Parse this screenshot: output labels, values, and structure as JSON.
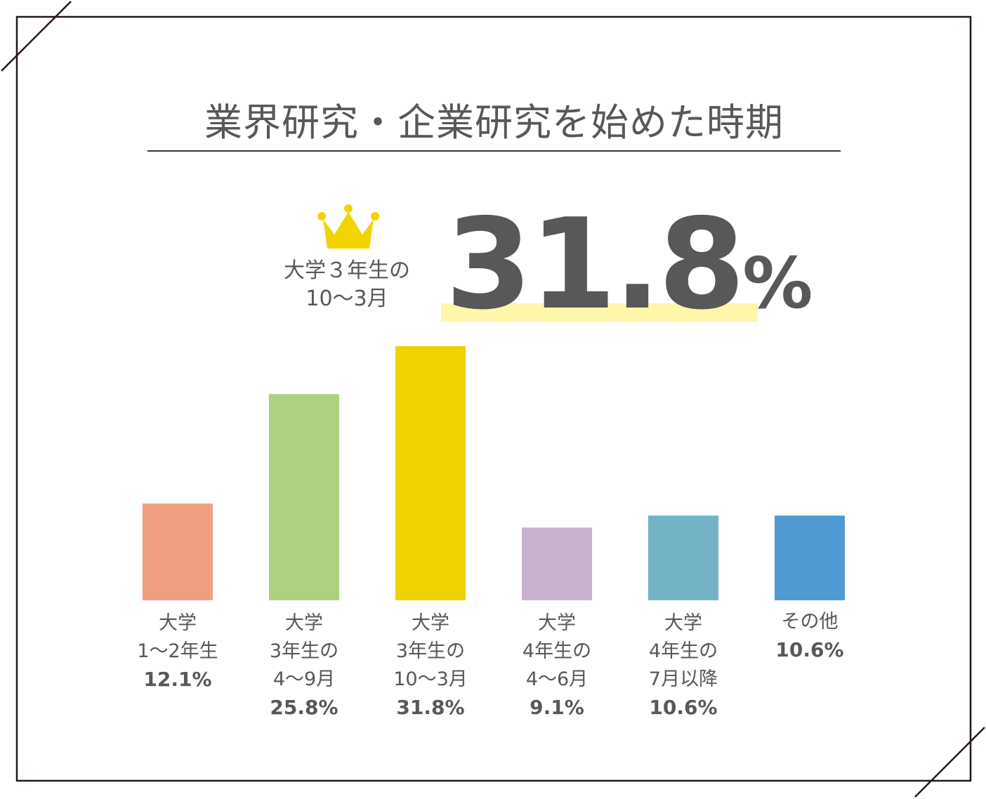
{
  "title": "業界研究・企業研究を始めた時期",
  "highlight": {
    "label_line1": "大学３年生の",
    "label_line2": "10～3月",
    "value_number": "31.8",
    "value_unit": "%",
    "icon": "crown-icon",
    "icon_color": "#f3d300",
    "marker_color": "#fff7a8"
  },
  "chart_data": {
    "type": "bar",
    "categories": [
      [
        "大学",
        "1～2年生"
      ],
      [
        "大学",
        "3年生の",
        "4～9月"
      ],
      [
        "大学",
        "3年生の",
        "10～3月"
      ],
      [
        "大学",
        "4年生の",
        "4～6月"
      ],
      [
        "大学",
        "4年生の",
        "7月以降"
      ],
      [
        "その他"
      ]
    ],
    "values": [
      12.1,
      25.8,
      31.8,
      9.1,
      10.6,
      10.6
    ],
    "value_labels": [
      "12.1%",
      "25.8%",
      "31.8%",
      "9.1%",
      "10.6%",
      "10.6%"
    ],
    "colors": [
      "#ef9e82",
      "#aed17f",
      "#f0d200",
      "#c7b2cf",
      "#73b3c5",
      "#4f9ad3"
    ],
    "ylim": [
      0,
      31.8
    ]
  }
}
